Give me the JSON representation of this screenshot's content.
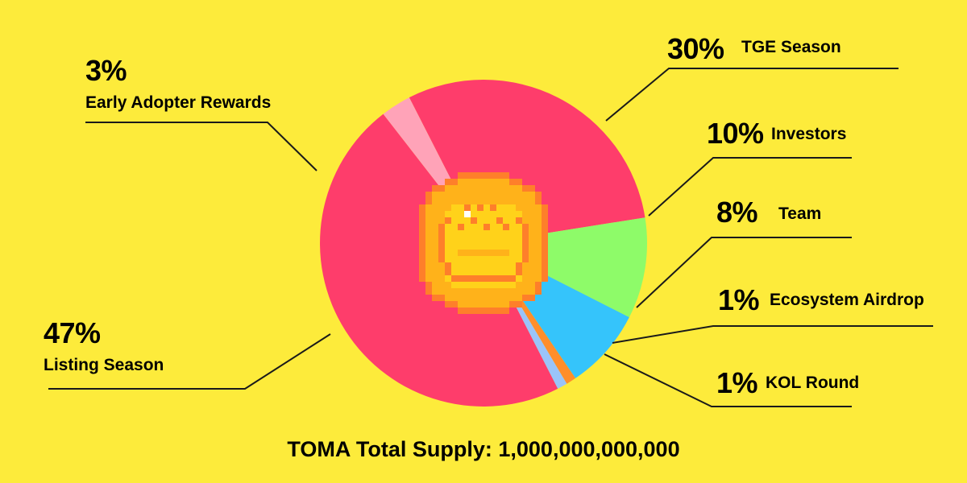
{
  "chart_data": {
    "type": "pie",
    "title": "",
    "footer": "TOMA Total Supply: 1,000,000,000,000",
    "slices": [
      {
        "label": "TGE Season",
        "percent_text": "30%",
        "value": 30,
        "color": "#fe3d6b"
      },
      {
        "label": "Investors",
        "percent_text": "10%",
        "value": 10,
        "color": "#8efb69"
      },
      {
        "label": "Team",
        "percent_text": "8%",
        "value": 8,
        "color": "#35c4fb"
      },
      {
        "label": "Ecosystem Airdrop",
        "percent_text": "1%",
        "value": 1,
        "color": "#ff8e2b"
      },
      {
        "label": "KOL Round",
        "percent_text": "1%",
        "value": 1,
        "color": "#9ac4f9"
      },
      {
        "label": "Listing Season",
        "percent_text": "47%",
        "value": 47,
        "color": "#fe3d6b"
      },
      {
        "label": "Early Adopter Rewards",
        "percent_text": "3%",
        "value": 3,
        "color": "#ffa3b8"
      }
    ]
  },
  "colors": {
    "background": "#fdeb3b",
    "text": "#1a1a1a",
    "coin_outer": "#fe7f2a",
    "coin_mid": "#ffb21a",
    "coin_inner": "#ffd21a",
    "coin_highlight": "#ffffff"
  },
  "center_icon": "pixel-coin-icon"
}
